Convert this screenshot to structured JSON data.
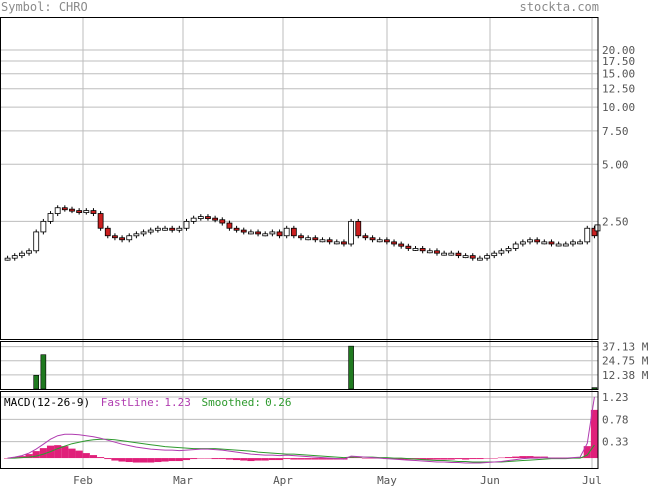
{
  "header": {
    "symbol_label": "Symbol:",
    "symbol": "CHRO",
    "site": "stockta.com"
  },
  "colors": {
    "grid": "#bdbdbd",
    "frame": "#000000",
    "up_candle": "#ffffff",
    "down_candle": "#cc1f1f",
    "volume": "#1f7a1f",
    "fastline": "#b03cb0",
    "smoothed": "#2e9a2e",
    "histogram": "#e0207a",
    "tick_text": "#555555"
  },
  "chart_data": [
    {
      "type": "candlestick",
      "title": "",
      "price_scale": "log",
      "y_ticks": [
        "20.00",
        "17.50",
        "15.00",
        "12.50",
        "10.00",
        "7.50",
        "5.00",
        "2.50"
      ],
      "x_ticks": [
        "Feb",
        "Mar",
        "Apr",
        "May",
        "Jun",
        "Jul"
      ],
      "grid": true,
      "last_price": 2.1,
      "closes": [
        1.6,
        1.65,
        1.7,
        1.75,
        2.2,
        2.5,
        2.75,
        2.95,
        2.9,
        2.85,
        2.8,
        2.85,
        2.75,
        2.3,
        2.1,
        2.05,
        2.0,
        2.1,
        2.15,
        2.2,
        2.25,
        2.3,
        2.3,
        2.25,
        2.3,
        2.5,
        2.6,
        2.65,
        2.6,
        2.55,
        2.45,
        2.3,
        2.25,
        2.2,
        2.2,
        2.15,
        2.15,
        2.2,
        2.1,
        2.3,
        2.1,
        2.05,
        2.05,
        2.0,
        2.0,
        1.95,
        1.95,
        1.9,
        2.5,
        2.1,
        2.05,
        2.0,
        2.0,
        1.95,
        1.9,
        1.85,
        1.8,
        1.8,
        1.75,
        1.75,
        1.7,
        1.7,
        1.7,
        1.65,
        1.65,
        1.6,
        1.6,
        1.65,
        1.7,
        1.75,
        1.8,
        1.9,
        1.95,
        2.0,
        1.95,
        1.95,
        1.9,
        1.9,
        1.9,
        1.95,
        1.95,
        2.3,
        2.1
      ]
    },
    {
      "type": "bar",
      "title": "",
      "series_label": "volume",
      "y_ticks": [
        "37.13 M",
        "24.75 M",
        "12.38 M"
      ],
      "bars": [
        {
          "index": 4,
          "value": 12.0
        },
        {
          "index": 5,
          "value": 30.0
        },
        {
          "index": 48,
          "value": 37.5
        },
        {
          "index": 82,
          "value": 1.2
        }
      ]
    },
    {
      "type": "line",
      "title": "MACD(12-26-9)",
      "y_ticks": [
        "1.23",
        "0.78",
        "0.33"
      ],
      "fastline_label": "FastLine:",
      "fastline_value": "1.23",
      "smoothed_label": "Smoothed:",
      "smoothed_value": "0.26",
      "fastline": [
        0.0,
        0.02,
        0.05,
        0.1,
        0.18,
        0.28,
        0.38,
        0.45,
        0.48,
        0.48,
        0.47,
        0.45,
        0.43,
        0.4,
        0.36,
        0.32,
        0.28,
        0.25,
        0.22,
        0.2,
        0.18,
        0.17,
        0.16,
        0.16,
        0.15,
        0.16,
        0.17,
        0.18,
        0.18,
        0.17,
        0.16,
        0.14,
        0.12,
        0.1,
        0.08,
        0.07,
        0.06,
        0.06,
        0.05,
        0.06,
        0.05,
        0.04,
        0.03,
        0.02,
        0.01,
        0.0,
        -0.01,
        -0.02,
        0.04,
        0.03,
        0.02,
        0.01,
        0.0,
        -0.01,
        -0.02,
        -0.03,
        -0.04,
        -0.05,
        -0.06,
        -0.07,
        -0.08,
        -0.08,
        -0.09,
        -0.09,
        -0.1,
        -0.1,
        -0.1,
        -0.09,
        -0.08,
        -0.07,
        -0.05,
        -0.03,
        -0.01,
        0.0,
        0.0,
        0.01,
        0.0,
        0.0,
        0.0,
        0.01,
        0.02,
        0.3,
        1.23
      ],
      "smoothed": [
        0.0,
        0.0,
        0.01,
        0.02,
        0.04,
        0.08,
        0.13,
        0.19,
        0.24,
        0.29,
        0.32,
        0.35,
        0.37,
        0.38,
        0.38,
        0.37,
        0.35,
        0.33,
        0.31,
        0.29,
        0.27,
        0.25,
        0.23,
        0.22,
        0.21,
        0.2,
        0.19,
        0.19,
        0.19,
        0.19,
        0.18,
        0.17,
        0.16,
        0.15,
        0.14,
        0.12,
        0.11,
        0.1,
        0.09,
        0.08,
        0.08,
        0.07,
        0.06,
        0.05,
        0.04,
        0.03,
        0.02,
        0.01,
        0.02,
        0.02,
        0.02,
        0.02,
        0.01,
        0.01,
        0.0,
        0.0,
        -0.01,
        -0.02,
        -0.03,
        -0.04,
        -0.05,
        -0.05,
        -0.06,
        -0.07,
        -0.07,
        -0.08,
        -0.08,
        -0.08,
        -0.08,
        -0.08,
        -0.07,
        -0.06,
        -0.05,
        -0.04,
        -0.03,
        -0.02,
        -0.01,
        -0.01,
        -0.01,
        0.0,
        0.0,
        0.06,
        0.26
      ]
    }
  ]
}
